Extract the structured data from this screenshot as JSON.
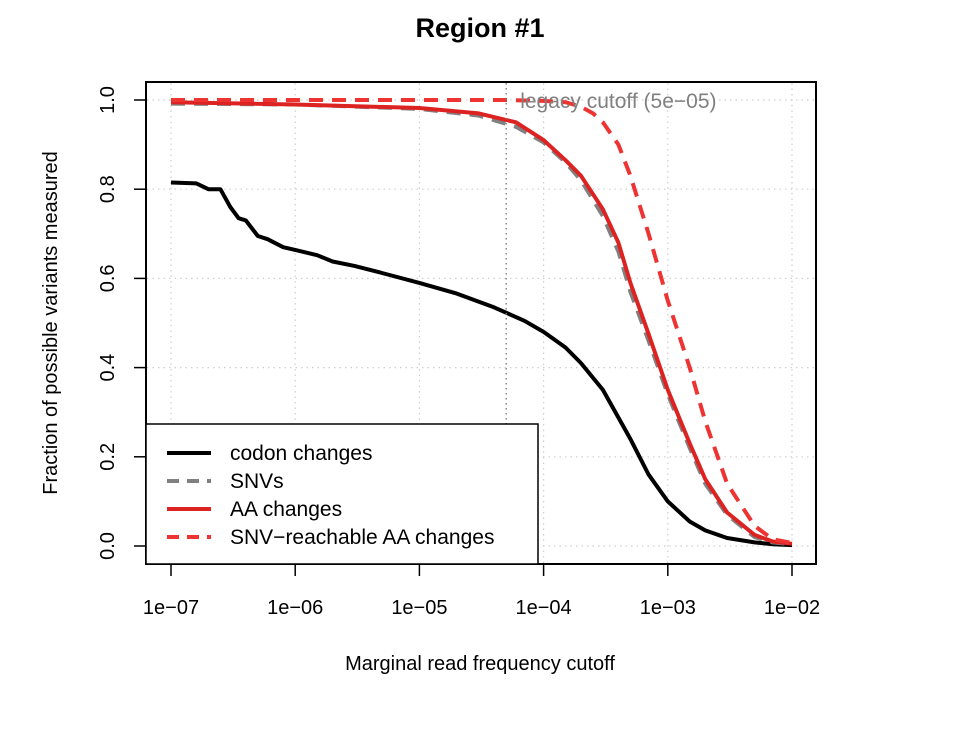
{
  "chart_data": {
    "type": "line",
    "title": "Region #1",
    "xlabel": "Marginal read frequency cutoff",
    "ylabel": "Fraction of possible variants measured",
    "x_scale": "log10",
    "xlim": [
      1e-07,
      0.01
    ],
    "ylim": [
      0.0,
      1.0
    ],
    "x_ticks": [
      "1e−07",
      "1e−06",
      "1e−05",
      "1e−04",
      "1e−03",
      "1e−02"
    ],
    "y_ticks": [
      "0.0",
      "0.2",
      "0.4",
      "0.6",
      "0.8",
      "1.0"
    ],
    "grid": true,
    "legend_position": "bottom-left",
    "annotation": {
      "text": "legacy cutoff (5e−05)",
      "x": 5e-05,
      "color": "#808080"
    },
    "series": [
      {
        "name": "codon changes",
        "color": "#000000",
        "dash": "solid",
        "x": [
          1e-07,
          1.6e-07,
          2e-07,
          2.5e-07,
          3e-07,
          3.5e-07,
          4e-07,
          5e-07,
          6e-07,
          8e-07,
          1e-06,
          1.5e-06,
          2e-06,
          3e-06,
          5e-06,
          1e-05,
          2e-05,
          4e-05,
          7e-05,
          0.0001,
          0.00015,
          0.0002,
          0.0003,
          0.0005,
          0.0007,
          0.001,
          0.0015,
          0.002,
          0.003,
          0.005,
          0.007,
          0.01
        ],
        "y": [
          0.815,
          0.813,
          0.8,
          0.8,
          0.76,
          0.735,
          0.73,
          0.695,
          0.688,
          0.67,
          0.664,
          0.652,
          0.638,
          0.628,
          0.612,
          0.59,
          0.566,
          0.535,
          0.505,
          0.48,
          0.445,
          0.41,
          0.35,
          0.24,
          0.16,
          0.1,
          0.055,
          0.035,
          0.018,
          0.008,
          0.004,
          0.002
        ]
      },
      {
        "name": "SNVs",
        "color": "#808080",
        "dash": "dashed",
        "x": [
          1e-07,
          1e-06,
          1e-05,
          3e-05,
          6e-05,
          0.0001,
          0.00015,
          0.0002,
          0.0003,
          0.0004,
          0.0005,
          0.0007,
          0.001,
          0.0015,
          0.002,
          0.003,
          0.005,
          0.007,
          0.01
        ],
        "y": [
          0.992,
          0.99,
          0.98,
          0.965,
          0.94,
          0.905,
          0.86,
          0.82,
          0.74,
          0.66,
          0.57,
          0.46,
          0.34,
          0.22,
          0.14,
          0.07,
          0.02,
          0.008,
          0.004
        ]
      },
      {
        "name": "AA changes",
        "color": "#dd2222",
        "dash": "solid",
        "x": [
          1e-07,
          1e-06,
          1e-05,
          3e-05,
          6e-05,
          0.0001,
          0.00015,
          0.0002,
          0.0003,
          0.0004,
          0.0005,
          0.0007,
          0.001,
          0.0015,
          0.002,
          0.003,
          0.005,
          0.007,
          0.01
        ],
        "y": [
          0.995,
          0.99,
          0.982,
          0.97,
          0.95,
          0.91,
          0.865,
          0.83,
          0.755,
          0.68,
          0.59,
          0.475,
          0.35,
          0.23,
          0.15,
          0.075,
          0.025,
          0.01,
          0.005
        ]
      },
      {
        "name": "SNV−reachable AA changes",
        "color": "#ee3333",
        "dash": "dashed",
        "x": [
          1e-07,
          1e-06,
          1e-05,
          5e-05,
          0.0001,
          0.00015,
          0.0002,
          0.00025,
          0.0003,
          0.0004,
          0.0005,
          0.0007,
          0.001,
          0.0015,
          0.002,
          0.003,
          0.005,
          0.007,
          0.01
        ],
        "y": [
          1.0,
          1.0,
          1.0,
          1.0,
          0.998,
          0.995,
          0.985,
          0.97,
          0.95,
          0.9,
          0.83,
          0.7,
          0.55,
          0.4,
          0.28,
          0.14,
          0.045,
          0.015,
          0.007
        ]
      }
    ]
  }
}
